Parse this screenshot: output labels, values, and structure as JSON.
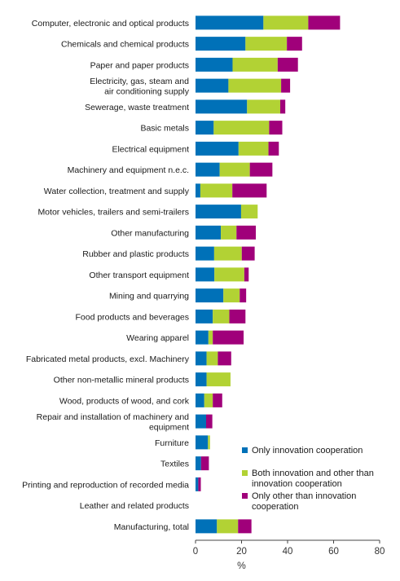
{
  "chart_data": {
    "type": "bar",
    "orientation": "horizontal",
    "stacked": true,
    "xlabel": "%",
    "xlim": [
      0,
      80
    ],
    "xticks": [
      0,
      20,
      40,
      60,
      80
    ],
    "grid": false,
    "legend_position": "bottom-right",
    "categories": [
      [
        "Computer, electronic and optical products"
      ],
      [
        "Chemicals and chemical products"
      ],
      [
        "Paper and paper products"
      ],
      [
        "Electricity, gas, steam and",
        "air conditioning supply"
      ],
      [
        "Sewerage, waste treatment"
      ],
      [
        "Basic metals"
      ],
      [
        "Electrical equipment"
      ],
      [
        "Machinery and equipment n.e.c."
      ],
      [
        "Water collection, treatment and supply"
      ],
      [
        "Motor vehicles, trailers and semi-trailers"
      ],
      [
        "Other manufacturing"
      ],
      [
        "Rubber and plastic products"
      ],
      [
        "Other transport equipment"
      ],
      [
        "Mining and quarrying"
      ],
      [
        "Food products and beverages"
      ],
      [
        "Wearing apparel"
      ],
      [
        "Fabricated metal products, excl. Machinery"
      ],
      [
        "Other non-metallic mineral products"
      ],
      [
        "Wood, products of wood, and cork"
      ],
      [
        "Repair and installation of machinery and",
        "equipment"
      ],
      [
        "Furniture"
      ],
      [
        "Textiles"
      ],
      [
        "Printing and reproduction of recorded media"
      ],
      [
        "Leather and related products"
      ],
      [
        "Manufacturing, total"
      ]
    ],
    "series": [
      {
        "name": "Only innovation cooperation",
        "legend_lines": [
          "Only innovation cooperation"
        ],
        "color": "#0071b8",
        "values": [
          29.5,
          21.7,
          16.1,
          14.3,
          22.4,
          7.9,
          18.7,
          10.5,
          2.1,
          19.8,
          11.0,
          8.1,
          8.2,
          12.1,
          7.5,
          5.6,
          4.8,
          4.8,
          3.8,
          4.6,
          5.4,
          2.4,
          1.2,
          0,
          9.3
        ]
      },
      {
        "name": "Both innovation and other than innovation cooperation",
        "legend_lines": [
          "Both innovation and other than",
          "innovation cooperation"
        ],
        "color": "#b2d234",
        "values": [
          19.5,
          18.0,
          19.6,
          22.9,
          14.4,
          24.1,
          13.0,
          13.1,
          13.9,
          7.2,
          6.8,
          12.0,
          13.0,
          7.1,
          7.2,
          1.9,
          4.9,
          10.4,
          3.7,
          0,
          0.9,
          0,
          0,
          0,
          9.2
        ]
      },
      {
        "name": "Only other than innovation cooperation",
        "legend_lines": [
          "Only other than innovation",
          "cooperation"
        ],
        "color": "#a0007a",
        "values": [
          13.8,
          6.6,
          8.8,
          3.9,
          2.2,
          5.7,
          4.5,
          9.8,
          14.9,
          0,
          8.4,
          5.6,
          1.9,
          2.8,
          7.0,
          13.4,
          5.8,
          0,
          4.1,
          2.7,
          0,
          3.4,
          1.1,
          0,
          5.8
        ]
      }
    ]
  }
}
